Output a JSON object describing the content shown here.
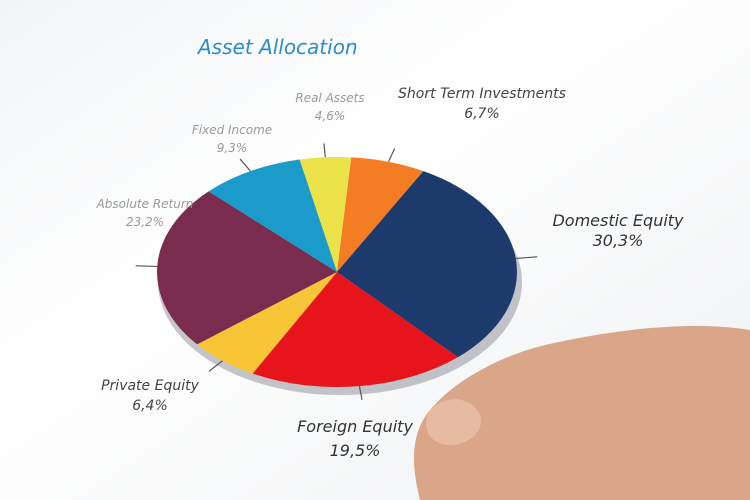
{
  "chart_data": {
    "type": "pie",
    "title": "Asset Allocation",
    "categories": [
      "Real Assets",
      "Short Term Investments",
      "Domestic Equity",
      "Foreign Equity",
      "Private Equity",
      "Absolute Return",
      "Fixed Income"
    ],
    "values": [
      4.6,
      6.7,
      30.3,
      19.5,
      6.4,
      23.2,
      9.3
    ],
    "value_labels": [
      "4,6%",
      "6,7%",
      "30,3%",
      "19,5%",
      "6,4%",
      "23,2%",
      "9,3%"
    ],
    "colors": [
      "#ece24a",
      "#f47c22",
      "#1d3a6d",
      "#e8141c",
      "#f8c536",
      "#7a2c4e",
      "#1b9bc9"
    ]
  }
}
